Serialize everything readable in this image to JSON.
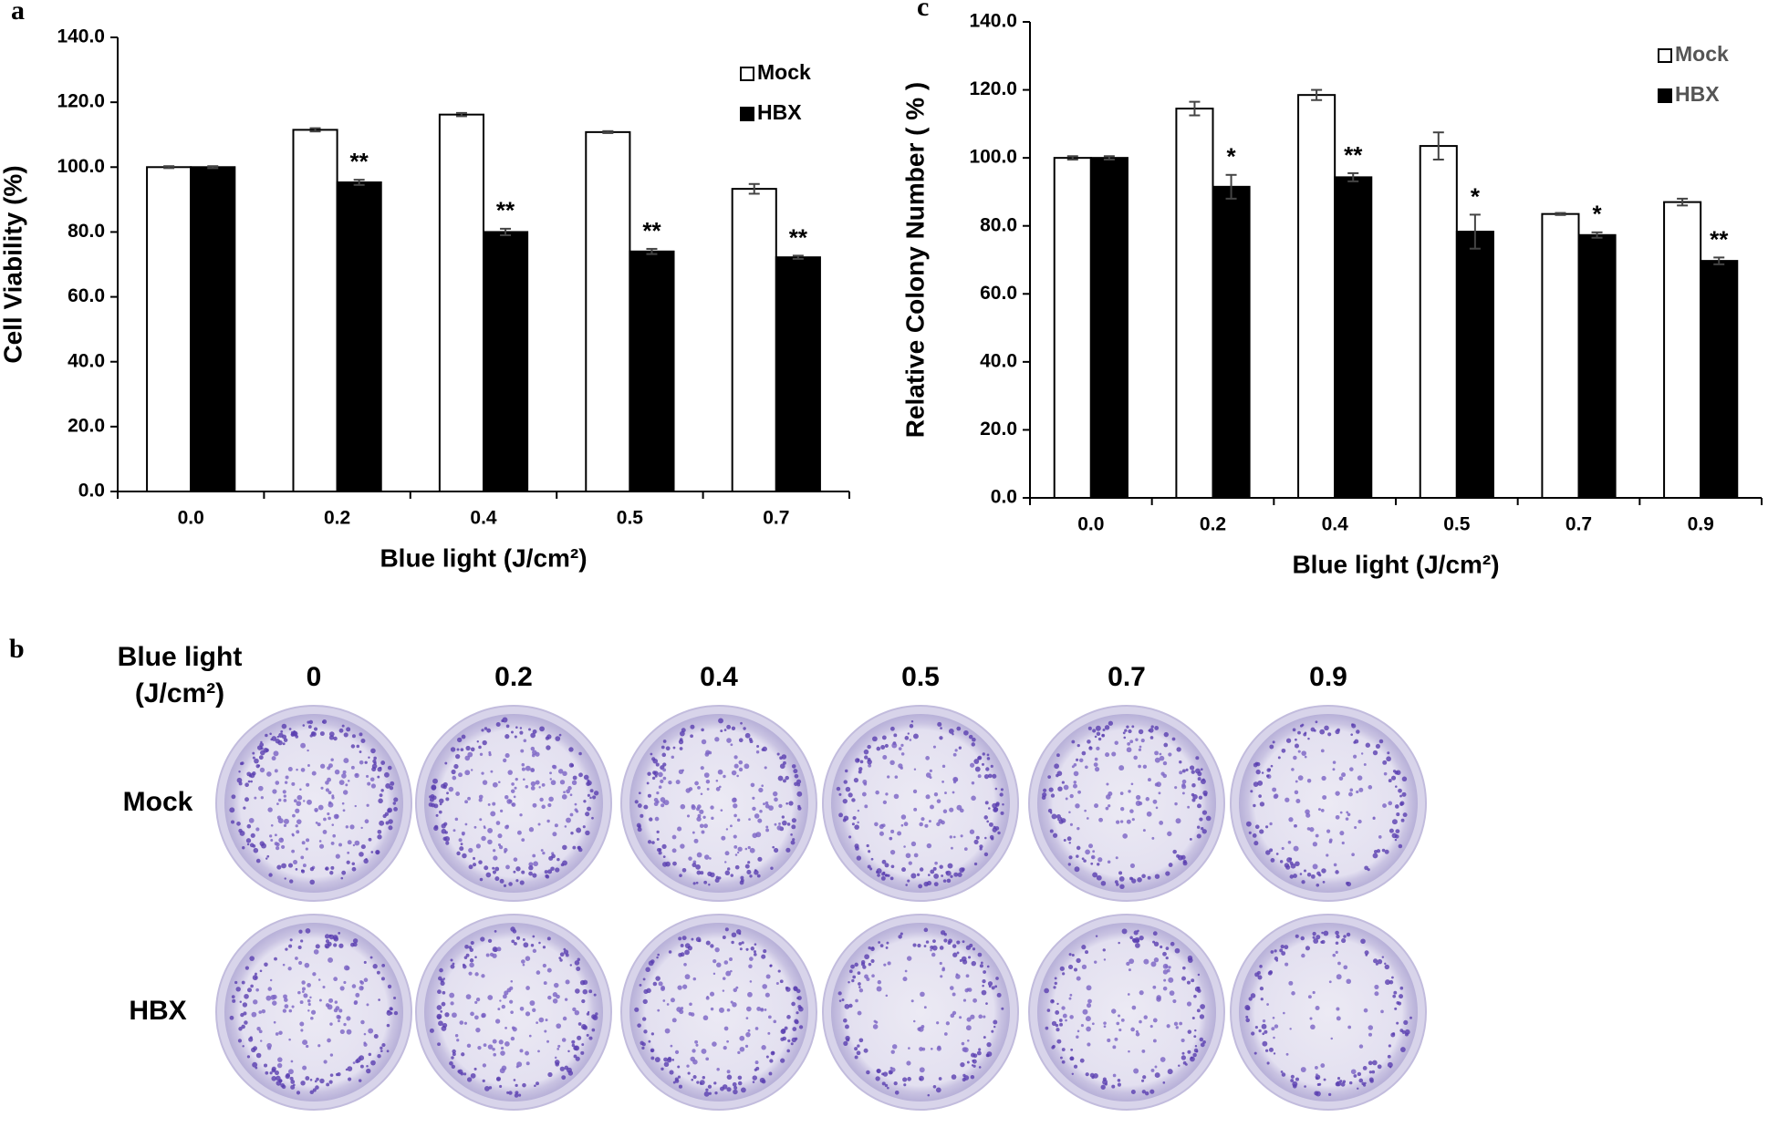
{
  "chart_data": [
    {
      "type": "bar",
      "label": "a",
      "ylabel": "Cell Viability (%)",
      "xlabel": "Blue light (J/cm²)",
      "categories": [
        "0.0",
        "0.2",
        "0.4",
        "0.5",
        "0.7"
      ],
      "series": [
        {
          "name": "Mock",
          "color": "#ffffff",
          "values": [
            100,
            111.5,
            116.2,
            110.8,
            93.3
          ],
          "errors": [
            0.3,
            0.5,
            0.5,
            0.3,
            1.5
          ]
        },
        {
          "name": "HBX",
          "color": "#000000",
          "values": [
            100,
            95.3,
            80,
            74,
            72.2
          ],
          "errors": [
            0.3,
            0.8,
            1,
            0.8,
            0.5
          ],
          "significance": [
            null,
            "**",
            "**",
            "**",
            "**"
          ]
        }
      ],
      "ylim": [
        0,
        140
      ],
      "yticks": [
        {
          "value": 0,
          "label": "0.0"
        },
        {
          "value": 20,
          "label": "20.0"
        },
        {
          "value": 40,
          "label": "40.0"
        },
        {
          "value": 60,
          "label": "60.0"
        },
        {
          "value": 80,
          "label": "80.0"
        },
        {
          "value": 100,
          "label": "100.0"
        },
        {
          "value": 120,
          "label": "120.0"
        },
        {
          "value": 140,
          "label": "140.0"
        }
      ],
      "legend": "upper right",
      "legend_color": "#000000"
    },
    {
      "type": "bar",
      "label": "c",
      "ylabel": "Relative Colony Number ( % )",
      "xlabel": "Blue light (J/cm²)",
      "categories": [
        "0.0",
        "0.2",
        "0.4",
        "0.5",
        "0.7",
        "0.9"
      ],
      "series": [
        {
          "name": "Mock",
          "color": "#ffffff",
          "values": [
            100,
            114.5,
            118.5,
            103.5,
            83.5,
            87
          ],
          "errors": [
            0.5,
            2,
            1.5,
            4,
            0.3,
            1
          ]
        },
        {
          "name": "HBX",
          "color": "#000000",
          "values": [
            100,
            91.5,
            94.3,
            78.3,
            77.3,
            69.7
          ],
          "errors": [
            0.5,
            3.5,
            1.2,
            5,
            0.8,
            1
          ],
          "significance": [
            null,
            "*",
            "**",
            "*",
            "*",
            "**"
          ]
        }
      ],
      "ylim": [
        0,
        140
      ],
      "yticks": [
        {
          "value": 0,
          "label": "0.0"
        },
        {
          "value": 20,
          "label": "20.0"
        },
        {
          "value": 40,
          "label": "40.0"
        },
        {
          "value": 60,
          "label": "60.0"
        },
        {
          "value": 80,
          "label": "80.0"
        },
        {
          "value": 100,
          "label": "100.0"
        },
        {
          "value": 120,
          "label": "120.0"
        },
        {
          "value": 140,
          "label": "140.0"
        }
      ],
      "legend": "upper right",
      "legend_color": "#555555"
    }
  ],
  "panel_b": {
    "label": "b",
    "header": [
      "Blue light",
      "(J/cm²)"
    ],
    "columns": [
      "0",
      "0.2",
      "0.4",
      "0.5",
      "0.7",
      "0.9"
    ],
    "rows": [
      "Mock",
      "HBX"
    ]
  }
}
